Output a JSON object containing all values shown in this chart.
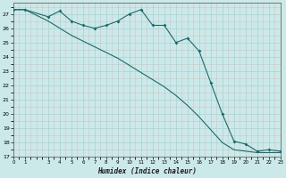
{
  "xlabel": "Humidex (Indice chaleur)",
  "bg_color": "#cce9e9",
  "line_color": "#1a6b6b",
  "grid_color": "#b0d4d4",
  "line1_x": [
    0,
    1,
    3,
    4,
    5,
    6,
    7,
    8,
    9,
    10,
    11,
    12,
    13,
    14,
    15,
    16,
    17,
    18,
    19,
    20,
    21,
    22,
    23
  ],
  "line1_y": [
    27.3,
    27.3,
    26.8,
    27.2,
    26.5,
    26.2,
    26.0,
    26.2,
    26.5,
    27.0,
    27.3,
    26.2,
    26.2,
    25.0,
    25.3,
    24.4,
    22.2,
    20.0,
    18.1,
    17.9,
    17.4,
    17.5,
    17.4
  ],
  "line2_x": [
    0,
    1,
    3,
    4,
    5,
    6,
    7,
    8,
    9,
    10,
    11,
    12,
    13,
    14,
    15,
    16,
    17,
    18,
    19,
    20,
    21,
    22,
    23
  ],
  "line2_y": [
    27.3,
    27.3,
    26.5,
    26.0,
    25.5,
    25.1,
    24.7,
    24.3,
    23.9,
    23.4,
    22.9,
    22.4,
    21.9,
    21.3,
    20.6,
    19.8,
    18.9,
    18.0,
    17.5,
    17.4,
    17.3,
    17.3,
    17.3
  ],
  "xlim": [
    0,
    23
  ],
  "ylim": [
    17,
    27.8
  ],
  "yticks": [
    17,
    18,
    19,
    20,
    21,
    22,
    23,
    24,
    25,
    26,
    27
  ],
  "xticks": [
    0,
    1,
    3,
    4,
    5,
    6,
    7,
    8,
    9,
    10,
    11,
    12,
    13,
    14,
    15,
    16,
    17,
    18,
    19,
    20,
    21,
    22,
    23
  ]
}
